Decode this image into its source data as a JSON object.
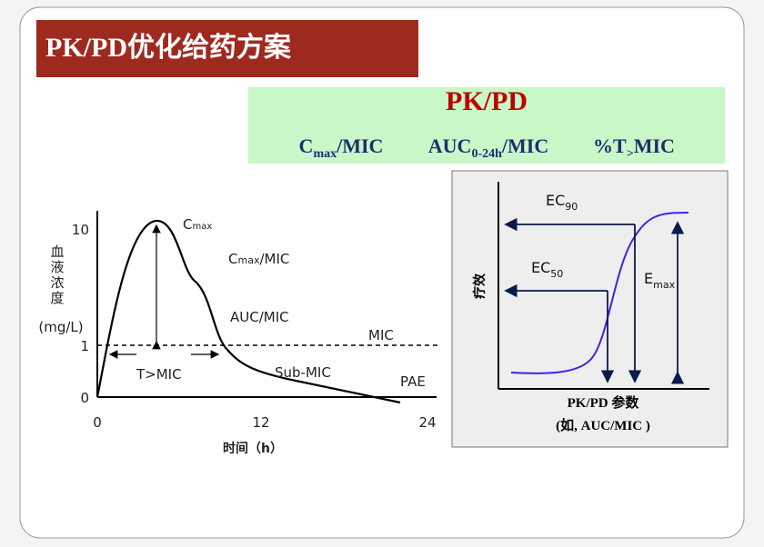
{
  "title": "PK/PD优化给药方案",
  "banner": {
    "heading": "PK/PD",
    "indices": [
      {
        "base": "C",
        "sub": "max",
        "rest": "/MIC"
      },
      {
        "base": "AUC",
        "sub": "0-24h",
        "rest": "/MIC"
      },
      {
        "base": "%T",
        "sub": ">",
        "rest": "MIC"
      }
    ]
  },
  "left_plot": {
    "y_label": [
      "血",
      "液",
      "浓",
      "度"
    ],
    "y_unit": "(mg/L)",
    "y_ticks": [
      10,
      1,
      0
    ],
    "x_ticks": [
      0,
      12,
      24
    ],
    "x_label": "时间（h）",
    "peak": {
      "base": "C",
      "sub": "max"
    },
    "ratio": {
      "base": "C",
      "sub": "max",
      "rest": "/MIC"
    },
    "auc": "AUC/MIC",
    "mic": "MIC",
    "t_mic": "T>MIC",
    "sub_mic": "Sub-MIC",
    "pae": "PAE"
  },
  "right_plot": {
    "ec90": {
      "base": "EC",
      "sub": "90"
    },
    "ec50": {
      "base": "EC",
      "sub": "50"
    },
    "emax": {
      "base": "E",
      "sub": "max"
    },
    "y_label": "疗效",
    "x_label": "PK/PD 参数",
    "x_note": "(如, AUC/MIC )"
  }
}
